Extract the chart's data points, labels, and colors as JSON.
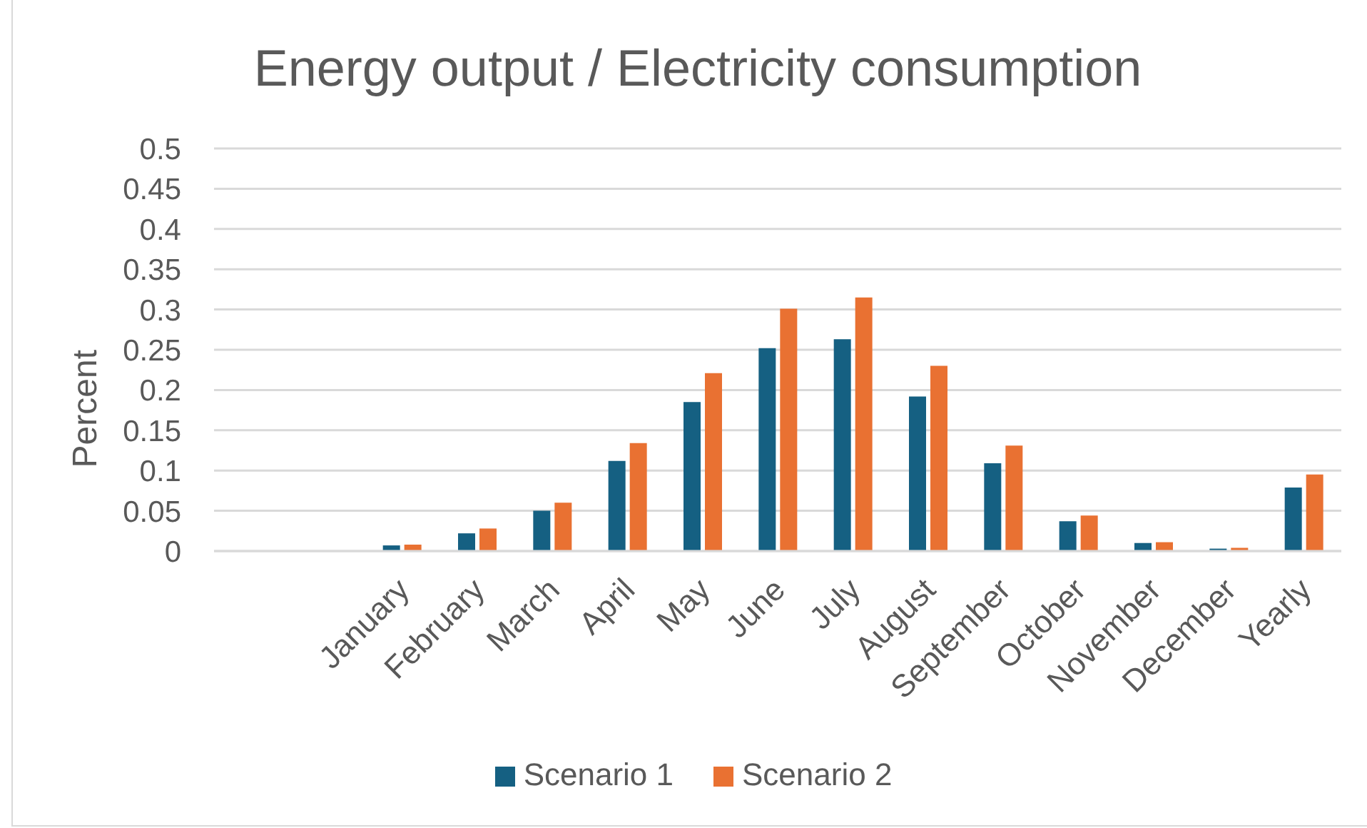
{
  "chart_data": {
    "type": "bar",
    "title": "Energy output / Electricity consumption",
    "ylabel": "Percent",
    "categories": [
      null,
      null,
      "January",
      "February",
      "March",
      "April",
      "May",
      "June",
      "July",
      "August",
      "September",
      "October",
      "November",
      "December",
      "Yearly"
    ],
    "series": [
      {
        "name": "Scenario 1",
        "color": "#156082",
        "values": [
          null,
          null,
          0.007,
          0.022,
          0.05,
          0.112,
          0.185,
          0.252,
          0.263,
          0.192,
          0.109,
          0.037,
          0.01,
          0.003,
          0.079
        ]
      },
      {
        "name": "Scenario 2",
        "color": "#e97132",
        "values": [
          null,
          null,
          0.008,
          0.028,
          0.06,
          0.134,
          0.221,
          0.301,
          0.315,
          0.23,
          0.131,
          0.044,
          0.011,
          0.004,
          0.095
        ]
      }
    ],
    "ylim": [
      0,
      0.5
    ],
    "yticks": [
      0,
      0.05,
      0.1,
      0.15,
      0.2,
      0.25,
      0.3,
      0.35,
      0.4,
      0.45,
      0.5
    ],
    "grid": "y",
    "legend": "bottom"
  }
}
